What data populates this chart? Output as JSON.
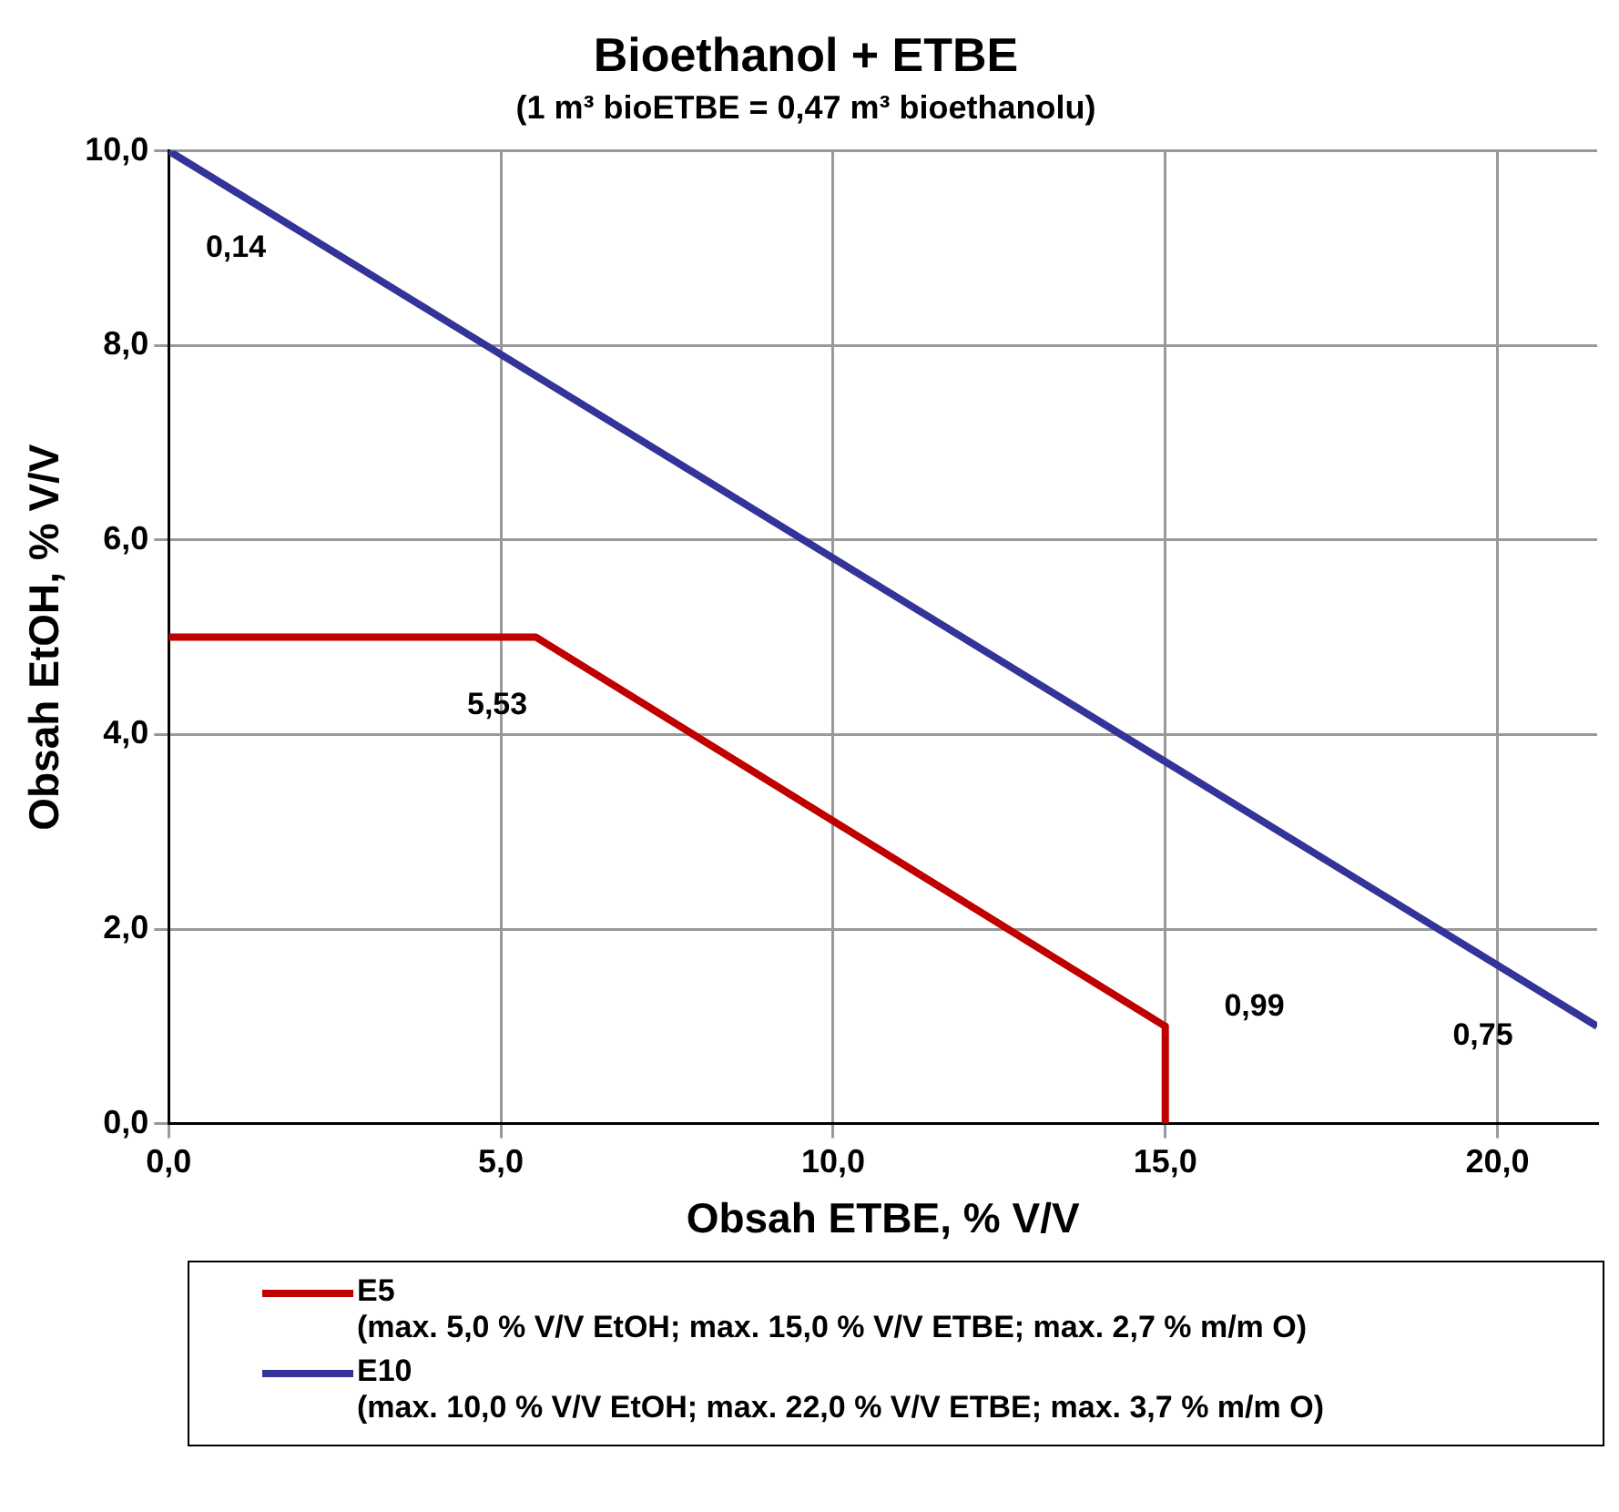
{
  "chart_data": {
    "type": "line",
    "title": "Bioethanol + ETBE",
    "subtitle": "(1 m³ bioETBE = 0,47 m³ bioethanolu)",
    "xlabel": "Obsah ETBE, % V/V",
    "ylabel": "Obsah EtOH, % V/V",
    "xlim": [
      0,
      21.5
    ],
    "xticks": [
      {
        "value": 0,
        "label": "0,0"
      },
      {
        "value": 5,
        "label": "5,0"
      },
      {
        "value": 10,
        "label": "10,0"
      },
      {
        "value": 15,
        "label": "15,0"
      },
      {
        "value": 20,
        "label": "20,0"
      }
    ],
    "ylim": [
      0,
      10
    ],
    "yticks": [
      {
        "value": 0,
        "label": "0,0"
      },
      {
        "value": 2,
        "label": "2,0"
      },
      {
        "value": 4,
        "label": "4,0"
      },
      {
        "value": 6,
        "label": "6,0"
      },
      {
        "value": 8,
        "label": "8,0"
      },
      {
        "value": 10,
        "label": "10,0"
      }
    ],
    "grid": true,
    "legend": "bottom",
    "marker": "none",
    "line_style": "solid",
    "series": [
      {
        "name": "E5 (max. 5,0 % V/V EtOH; max. 15,0 % V/V ETBE; max. 2,7 % m/m O)",
        "color": "#c00000",
        "x": [
          0,
          5.53,
          15,
          15
        ],
        "values": [
          5,
          5,
          1,
          0
        ]
      },
      {
        "name": "E10 (max. 10,0 % V/V EtOH; max. 22,0 % V/V ETBE; max. 3,7 % m/m O)",
        "color": "#333399",
        "x": [
          0,
          21.5
        ],
        "values": [
          10,
          1.0
        ]
      }
    ],
    "annotations": [
      "0,14",
      "5,53",
      "0,99",
      "0,75"
    ]
  }
}
